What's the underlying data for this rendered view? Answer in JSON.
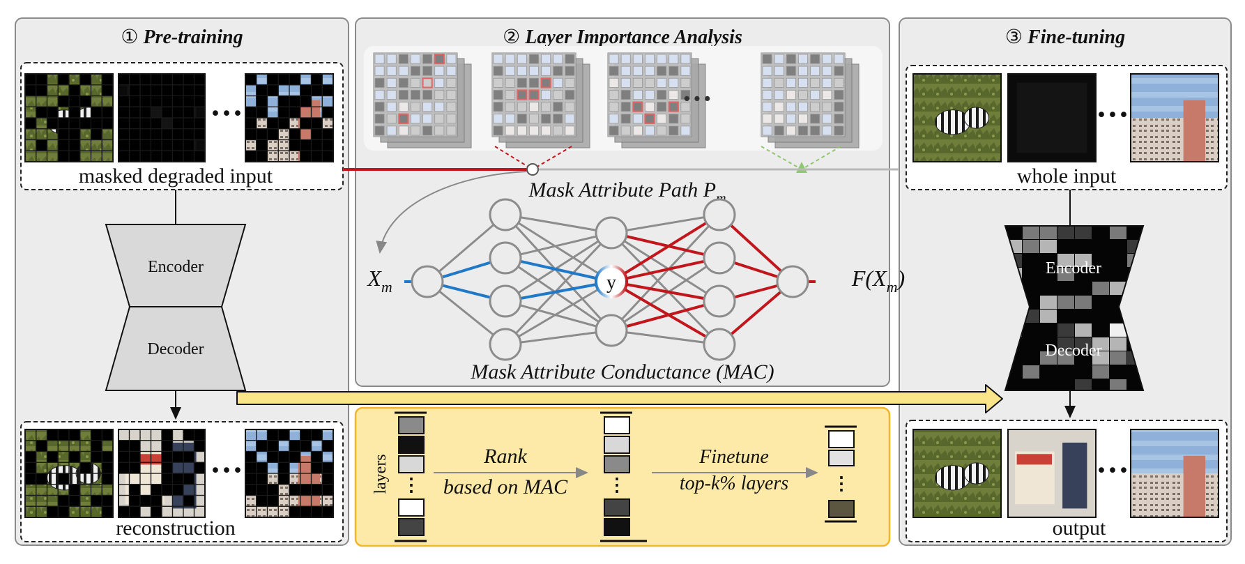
{
  "panels": {
    "pretrain": {
      "num": "①",
      "title": "Pre-training"
    },
    "analysis": {
      "num": "②",
      "title": "Layer Importance Analysis"
    },
    "finetune": {
      "num": "③",
      "title": "Fine-tuning"
    }
  },
  "pretrain": {
    "input_caption": "masked degraded input",
    "encoder": "Encoder",
    "decoder": "Decoder",
    "output_caption": "reconstruction",
    "ellipsis": "···"
  },
  "analysis": {
    "path_label": "Mask Attribute Path ",
    "path_symbol": "P",
    "path_sub": "m",
    "input_symbol": "X",
    "input_sub": "m",
    "output_prefix": "F(X",
    "output_sub": "m",
    "output_suffix": ")",
    "node_y": "y",
    "mac_label": "Mask Attribute Conductance (",
    "mac_abbr": "MAC",
    "mac_close": ")",
    "ellipsis": "···"
  },
  "ranking": {
    "layers_label": "layers",
    "rank_label": "Rank",
    "rank_sub": "based on MAC",
    "finetune_label": "Finetune",
    "finetune_sub": "top-k% layers"
  },
  "finetune": {
    "input_caption": "whole input",
    "encoder": "Encoder",
    "decoder": "Decoder",
    "output_caption": "output",
    "ellipsis": "···"
  },
  "colors": {
    "panel_bg": "#ececec",
    "panel_border": "#8a8a8a",
    "red": "#c0161c",
    "blue": "#1f78c8",
    "gray_line": "#8c8c8c",
    "yellow_bg": "#fde9a8",
    "yellow_border": "#f2b628",
    "yellow_arrow": "#fbe58a"
  }
}
